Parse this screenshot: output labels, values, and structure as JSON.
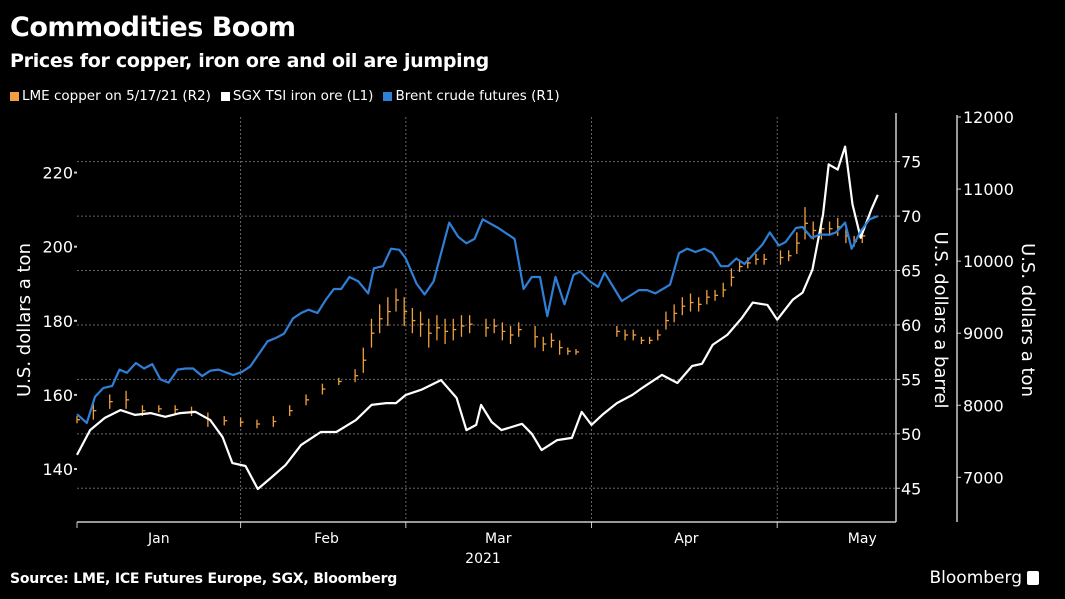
{
  "header": {
    "title": "Commodities Boom",
    "subtitle": "Prices for copper, iron ore and oil are jumping"
  },
  "footer": {
    "source": "Source: LME, ICE Futures Europe, SGX, Bloomberg",
    "brand": "Bloomberg"
  },
  "colors": {
    "copper": "#f0a040",
    "iron": "#ffffff",
    "brent": "#2f7fd6",
    "grid": "#666666"
  },
  "chart_data": {
    "type": "line",
    "title": "Commodities Boom",
    "subtitle": "Prices for copper, iron ore and oil are jumping",
    "x_unit": "trading day index from start of 2021",
    "xlim": [
      0,
      100
    ],
    "x_ticks": [
      {
        "label": "Jan",
        "x": 10
      },
      {
        "label": "Feb",
        "x": 30.5
      },
      {
        "label": "Mar",
        "x": 51.5
      },
      {
        "label": "Apr",
        "x": 74.5
      },
      {
        "label": "May",
        "x": 96
      }
    ],
    "month_boundaries": [
      20,
      40.2,
      62.9,
      85.6
    ],
    "x_year_label": "2021",
    "axes": {
      "L1": {
        "label": "U.S. dollars a ton",
        "ylim": [
          125.7,
          235
        ],
        "ticks": [
          "140",
          "160",
          "180",
          "200",
          "220"
        ]
      },
      "R1": {
        "label": "U.S. dollars a barrel",
        "ylim": [
          41.9,
          79.1
        ],
        "ticks": [
          "45",
          "50",
          "55",
          "60",
          "65",
          "70",
          "75"
        ]
      },
      "R2": {
        "label": "U.S. dollars a ton",
        "ylim": [
          6380,
          12000
        ],
        "ticks": [
          "7000",
          "8000",
          "9000",
          "10000",
          "11000",
          "12000"
        ]
      }
    },
    "legend": [
      {
        "name": "LME copper on 5/17/21 (R2)",
        "color": "#f0a040"
      },
      {
        "name": "SGX TSI iron ore (L1)",
        "color": "#ffffff"
      },
      {
        "name": "Brent crude futures (R1)",
        "color": "#2f7fd6"
      }
    ],
    "legend_position": "top-left",
    "grid": true,
    "series": [
      {
        "name": "SGX TSI iron ore (L1)",
        "axis": "L1",
        "kind": "line",
        "points": [
          [
            0,
            143.8
          ],
          [
            1.6,
            150.5
          ],
          [
            3.4,
            153.8
          ],
          [
            5.3,
            155.9
          ],
          [
            7.1,
            154.6
          ],
          [
            9.0,
            155.1
          ],
          [
            10.8,
            154.1
          ],
          [
            12.6,
            155.1
          ],
          [
            14.5,
            155.4
          ],
          [
            16.3,
            153.2
          ],
          [
            17.8,
            148.6
          ],
          [
            19.0,
            141.6
          ],
          [
            20.6,
            140.8
          ],
          [
            22.1,
            134.6
          ],
          [
            23.7,
            137.6
          ],
          [
            25.5,
            141.1
          ],
          [
            27.4,
            146.5
          ],
          [
            29.8,
            150
          ],
          [
            31.7,
            150
          ],
          [
            34.1,
            153.2
          ],
          [
            36.0,
            157.3
          ],
          [
            37.8,
            157.8
          ],
          [
            39.0,
            157.8
          ],
          [
            40.2,
            160
          ],
          [
            42.1,
            161.4
          ],
          [
            44.5,
            164
          ],
          [
            46.4,
            159.2
          ],
          [
            47.6,
            150.5
          ],
          [
            48.8,
            151.9
          ],
          [
            49.4,
            157.3
          ],
          [
            50.7,
            152.7
          ],
          [
            51.9,
            150.5
          ],
          [
            54.4,
            152.2
          ],
          [
            55.6,
            149.5
          ],
          [
            56.8,
            145.1
          ],
          [
            58.7,
            147.8
          ],
          [
            60.5,
            148.4
          ],
          [
            61.7,
            155.4
          ],
          [
            62.9,
            151.9
          ],
          [
            64.2,
            154.6
          ],
          [
            66.0,
            157.8
          ],
          [
            67.9,
            160
          ],
          [
            69.1,
            161.9
          ],
          [
            71.5,
            165.4
          ],
          [
            73.4,
            163.2
          ],
          [
            75.2,
            167.8
          ],
          [
            76.4,
            168.4
          ],
          [
            77.7,
            173.5
          ],
          [
            79.5,
            176.2
          ],
          [
            81.3,
            180.8
          ],
          [
            82.6,
            184.9
          ],
          [
            84.4,
            184.3
          ],
          [
            85.6,
            180.3
          ],
          [
            87.5,
            185.7
          ],
          [
            88.7,
            187.6
          ],
          [
            89.9,
            193.8
          ],
          [
            91.2,
            208.6
          ],
          [
            91.9,
            222.2
          ],
          [
            93.0,
            220.8
          ],
          [
            93.9,
            227
          ],
          [
            94.8,
            211.4
          ],
          [
            95.8,
            202.4
          ],
          [
            97.1,
            210
          ],
          [
            97.9,
            214
          ]
        ]
      },
      {
        "name": "Brent crude futures (R1)",
        "axis": "R1",
        "kind": "line",
        "points": [
          [
            0,
            51.8
          ],
          [
            1.2,
            51.0
          ],
          [
            2.2,
            53.4
          ],
          [
            3.2,
            54.2
          ],
          [
            4.3,
            54.4
          ],
          [
            5.2,
            55.9
          ],
          [
            6.1,
            55.6
          ],
          [
            7.2,
            56.5
          ],
          [
            8.2,
            56.0
          ],
          [
            9.2,
            56.4
          ],
          [
            10.2,
            55.0
          ],
          [
            11.2,
            54.7
          ],
          [
            12.3,
            55.9
          ],
          [
            13.3,
            56.0
          ],
          [
            14.2,
            56.0
          ],
          [
            15.3,
            55.3
          ],
          [
            16.3,
            55.8
          ],
          [
            17.3,
            55.9
          ],
          [
            19.1,
            55.4
          ],
          [
            20.2,
            55.7
          ],
          [
            21.2,
            56.2
          ],
          [
            23.3,
            58.5
          ],
          [
            24.3,
            58.8
          ],
          [
            25.3,
            59.2
          ],
          [
            26.4,
            60.6
          ],
          [
            27.4,
            61.1
          ],
          [
            28.3,
            61.4
          ],
          [
            29.4,
            61.1
          ],
          [
            30.4,
            62.3
          ],
          [
            31.4,
            63.3
          ],
          [
            32.3,
            63.3
          ],
          [
            33.3,
            64.4
          ],
          [
            34.4,
            64.0
          ],
          [
            35.6,
            62.9
          ],
          [
            36.3,
            65.2
          ],
          [
            37.4,
            65.4
          ],
          [
            38.4,
            67.0
          ],
          [
            39.4,
            66.9
          ],
          [
            40.2,
            66.1
          ],
          [
            41.5,
            63.8
          ],
          [
            42.5,
            62.8
          ],
          [
            43.6,
            64.0
          ],
          [
            45.5,
            69.4
          ],
          [
            46.6,
            68.1
          ],
          [
            47.6,
            67.5
          ],
          [
            48.6,
            67.9
          ],
          [
            49.6,
            69.7
          ],
          [
            51.5,
            68.9
          ],
          [
            53.5,
            67.9
          ],
          [
            54.6,
            63.3
          ],
          [
            55.6,
            64.4
          ],
          [
            56.6,
            64.4
          ],
          [
            57.5,
            60.8
          ],
          [
            58.5,
            64.4
          ],
          [
            59.6,
            61.9
          ],
          [
            60.7,
            64.6
          ],
          [
            61.5,
            64.9
          ],
          [
            62.7,
            64.0
          ],
          [
            63.7,
            63.5
          ],
          [
            64.5,
            64.8
          ],
          [
            66.6,
            62.2
          ],
          [
            68.7,
            63.2
          ],
          [
            69.7,
            63.2
          ],
          [
            70.7,
            62.9
          ],
          [
            72.5,
            63.7
          ],
          [
            73.6,
            66.6
          ],
          [
            74.6,
            67.0
          ],
          [
            75.6,
            66.7
          ],
          [
            76.7,
            67.0
          ],
          [
            77.7,
            66.6
          ],
          [
            78.7,
            65.4
          ],
          [
            79.6,
            65.4
          ],
          [
            80.6,
            66.1
          ],
          [
            81.6,
            65.6
          ],
          [
            83.8,
            67.4
          ],
          [
            84.7,
            68.5
          ],
          [
            85.8,
            67.3
          ],
          [
            86.6,
            67.6
          ],
          [
            87.9,
            68.9
          ],
          [
            88.7,
            69.0
          ],
          [
            89.8,
            68.0
          ],
          [
            90.8,
            68.3
          ],
          [
            92.0,
            68.3
          ],
          [
            92.8,
            68.5
          ],
          [
            93.9,
            69.4
          ],
          [
            94.7,
            67.0
          ],
          [
            95.8,
            68.6
          ],
          [
            96.9,
            69.7
          ],
          [
            97.9,
            70.0
          ]
        ]
      },
      {
        "name": "LME copper on 5/17/21 (R2)",
        "axis": "R2",
        "kind": "hl-bars",
        "bars": [
          [
            0,
            7750,
            7850
          ],
          [
            2,
            7800,
            8050
          ],
          [
            4,
            7950,
            8150
          ],
          [
            6,
            7950,
            8200
          ],
          [
            8,
            7850,
            8000
          ],
          [
            10,
            7900,
            8000
          ],
          [
            12,
            7880,
            8000
          ],
          [
            14,
            7850,
            7980
          ],
          [
            16,
            7700,
            7900
          ],
          [
            18,
            7720,
            7850
          ],
          [
            20,
            7700,
            7830
          ],
          [
            22,
            7680,
            7800
          ],
          [
            24,
            7700,
            7850
          ],
          [
            26,
            7850,
            8000
          ],
          [
            28,
            8000,
            8150
          ],
          [
            30,
            8150,
            8300
          ],
          [
            32,
            8280,
            8380
          ],
          [
            34,
            8320,
            8500
          ],
          [
            35,
            8450,
            8800
          ],
          [
            36,
            8800,
            9200
          ],
          [
            37,
            9000,
            9400
          ],
          [
            38,
            9100,
            9500
          ],
          [
            39,
            9300,
            9620
          ],
          [
            40,
            9100,
            9500
          ],
          [
            41,
            9000,
            9350
          ],
          [
            42,
            8950,
            9300
          ],
          [
            43,
            8800,
            9200
          ],
          [
            44,
            8900,
            9250
          ],
          [
            45,
            8850,
            9200
          ],
          [
            46,
            8900,
            9200
          ],
          [
            47,
            8950,
            9250
          ],
          [
            48,
            9000,
            9250
          ],
          [
            50,
            8950,
            9200
          ],
          [
            51,
            9000,
            9200
          ],
          [
            52,
            8900,
            9150
          ],
          [
            53,
            8850,
            9100
          ],
          [
            54,
            8950,
            9150
          ],
          [
            56,
            8800,
            9100
          ],
          [
            57,
            8750,
            8950
          ],
          [
            58,
            8800,
            9000
          ],
          [
            59,
            8700,
            8900
          ],
          [
            60,
            8700,
            8800
          ],
          [
            61,
            8700,
            8780
          ],
          [
            66,
            8950,
            9100
          ],
          [
            67,
            8900,
            9050
          ],
          [
            68,
            8900,
            9050
          ],
          [
            69,
            8850,
            8950
          ],
          [
            70,
            8850,
            8950
          ],
          [
            71,
            8900,
            9050
          ],
          [
            72,
            9050,
            9300
          ],
          [
            73,
            9150,
            9400
          ],
          [
            74,
            9250,
            9500
          ],
          [
            75,
            9300,
            9550
          ],
          [
            76,
            9300,
            9500
          ],
          [
            77,
            9400,
            9600
          ],
          [
            78,
            9450,
            9600
          ],
          [
            79,
            9500,
            9700
          ],
          [
            80,
            9650,
            9900
          ],
          [
            81,
            9850,
            10000
          ],
          [
            82,
            9900,
            10050
          ],
          [
            83,
            9950,
            10100
          ],
          [
            84,
            9950,
            10100
          ],
          [
            86,
            9950,
            10150
          ],
          [
            87,
            10000,
            10150
          ],
          [
            88,
            10100,
            10400
          ],
          [
            89,
            10300,
            10750
          ],
          [
            90,
            10300,
            10550
          ],
          [
            91,
            10300,
            10600
          ],
          [
            92,
            10350,
            10550
          ],
          [
            93,
            10350,
            10600
          ],
          [
            94,
            10250,
            10450
          ],
          [
            95,
            10200,
            10350
          ],
          [
            96,
            10250,
            10450
          ]
        ]
      }
    ]
  }
}
